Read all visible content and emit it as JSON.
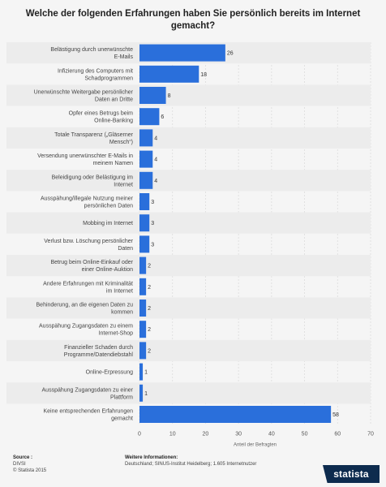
{
  "chart_data": {
    "type": "bar",
    "orientation": "horizontal",
    "title": "Welche der folgenden Erfahrungen haben Sie persönlich bereits im Internet gemacht?",
    "xlabel": "Anteil der Befragten",
    "ylabel": "",
    "xlim": [
      0,
      70
    ],
    "xticks": [
      0,
      10,
      20,
      30,
      40,
      50,
      60,
      70
    ],
    "grid": true,
    "bar_color": "#2a6fdb",
    "categories": [
      "Belästigung durch unerwünschte E-Mails",
      "Infizierung des Computers mit Schadprogrammen",
      "Unerwünschte Weitergabe persönlicher Daten an Dritte",
      "Opfer eines Betrugs beim Online-Banking",
      "Totale Transparenz („Gläserner Mensch“)",
      "Versendung unerwünschter E-Mails in meinem Namen",
      "Beleidigung oder Belästigung im Internet",
      "Ausspähung/illegale Nutzung meiner persönlichen Daten",
      "Mobbing im Internet",
      "Verlust bzw. Löschung persönlicher Daten",
      "Betrug beim Online-Einkauf oder einer Online-Auktion",
      "Andere Erfahrungen mit Kriminalität im Internet",
      "Behinderung, an die eigenen Daten zu kommen",
      "Ausspähung Zugangsdaten zu einem Internet-Shop",
      "Finanzieller Schaden durch Programme/Datendiebstahl",
      "Online-Erpressung",
      "Ausspähung Zugangsdaten zu einer Plattform",
      "Keine entsprechenden Erfahrungen gemacht"
    ],
    "values": [
      26,
      18,
      8,
      6,
      4,
      4,
      4,
      3,
      3,
      3,
      2,
      2,
      2,
      2,
      2,
      1,
      1,
      58
    ]
  },
  "footer": {
    "source_heading": "Source :",
    "source_lines": [
      "DIVSI",
      "© Statista 2015"
    ],
    "info_heading": "Weitere Informationen:",
    "info_text": "Deutschland; SINUS-Institut Heidelberg; 1.605 Internetnutzer"
  },
  "logo": {
    "text": "statista"
  }
}
